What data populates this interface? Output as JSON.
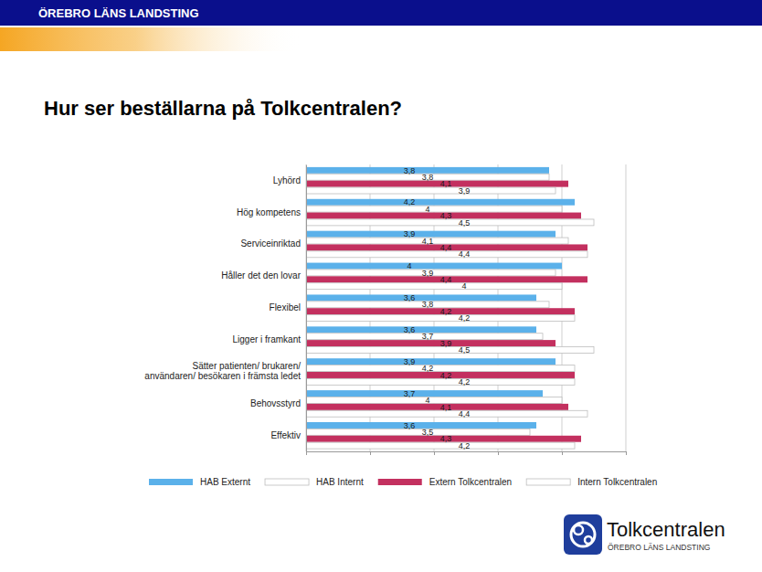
{
  "header": "ÖREBRO LÄNS LANDSTING",
  "logo": {
    "name": "Tolkcentralen",
    "org": "ÖREBRO LÄNS LANDSTING"
  },
  "chart_data": {
    "type": "bar",
    "title": "Hur ser beställarna på Tolkcentralen?",
    "orientation": "horizontal",
    "categories": [
      "Lyhörd",
      "Hög kompetens",
      "Serviceinriktad",
      "Håller det den lovar",
      "Flexibel",
      "Ligger i framkant",
      "Sätter patienten/ brukaren/\nanvändaren/ besökaren i främsta ledet",
      "Behovsstyrd",
      "Effektiv"
    ],
    "series": [
      {
        "name": "HAB Externt",
        "color": "#5bb1ea",
        "values": [
          3.8,
          4.2,
          3.9,
          4,
          3.6,
          3.6,
          3.9,
          3.7,
          3.6
        ],
        "value_labels": [
          "3,8",
          "4,2",
          "3,9",
          "4",
          "3,6",
          "3,6",
          "3,9",
          "3,7",
          "3,6"
        ]
      },
      {
        "name": "HAB Internt",
        "color": "#ffffff",
        "values": [
          3.8,
          4,
          4.1,
          3.9,
          3.8,
          3.7,
          4.2,
          4,
          3.5
        ],
        "value_labels": [
          "3,8",
          "4",
          "4,1",
          "3,9",
          "3,8",
          "3,7",
          "4,2",
          "4",
          "3,5"
        ]
      },
      {
        "name": "Extern Tolkcentralen",
        "color": "#c3305f",
        "values": [
          4.1,
          4.3,
          4.4,
          4.4,
          4.2,
          3.9,
          4.2,
          4.1,
          4.3
        ],
        "value_labels": [
          "4,1",
          "4,3",
          "4,4",
          "4,4",
          "4,2",
          "3,9",
          "4,2",
          "4,1",
          "4,3"
        ]
      },
      {
        "name": "Intern Tolkcentralen",
        "color": "#ffffff",
        "values": [
          3.9,
          4.5,
          4.4,
          4,
          4.2,
          4.5,
          4.2,
          4.4,
          4.2
        ],
        "value_labels": [
          "3,9",
          "4,5",
          "4,4",
          "4",
          "4,2",
          "4,5",
          "4,2",
          "4,4",
          "4,2"
        ]
      }
    ],
    "xlim": [
      0,
      5
    ],
    "xticks": [
      0,
      1,
      2,
      3,
      4,
      5
    ],
    "grid": true,
    "tick_labels": "y",
    "data_labels": true,
    "legend": "bottom"
  }
}
